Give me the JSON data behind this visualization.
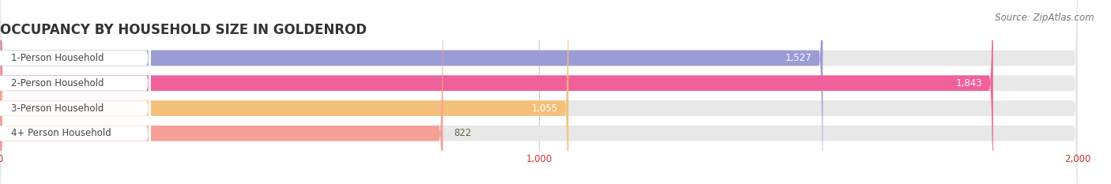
{
  "title": "OCCUPANCY BY HOUSEHOLD SIZE IN GOLDENROD",
  "source": "Source: ZipAtlas.com",
  "categories": [
    "1-Person Household",
    "2-Person Household",
    "3-Person Household",
    "4+ Person Household"
  ],
  "values": [
    1527,
    1843,
    1055,
    822
  ],
  "bar_colors": [
    "#9b9bd6",
    "#f0609a",
    "#f5c07a",
    "#f4a098"
  ],
  "value_colors": [
    "#ffffff",
    "#ffffff",
    "#888855",
    "#888888"
  ],
  "xlim": [
    0,
    2000
  ],
  "xticks": [
    0,
    1000,
    2000
  ],
  "xtick_labels": [
    "0",
    "1,000",
    "2,000"
  ],
  "title_fontsize": 12,
  "label_fontsize": 8.5,
  "value_fontsize": 8.5,
  "source_fontsize": 8.5,
  "bg_color": "#ffffff",
  "bar_bg_color": "#e8e8e8",
  "bar_height": 0.62,
  "bar_gap": 0.38
}
